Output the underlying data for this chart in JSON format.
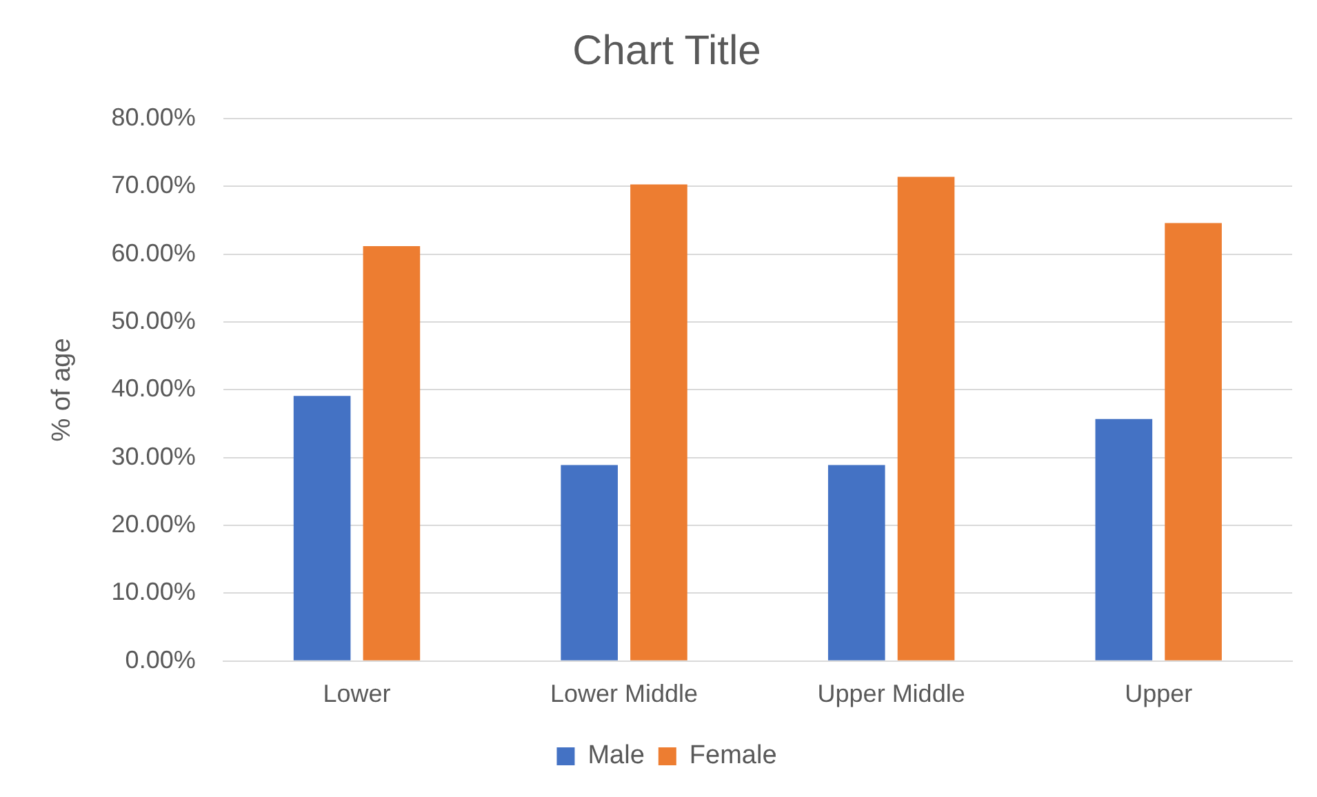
{
  "chart_data": {
    "type": "bar",
    "title": "Chart Title",
    "ylabel": "% of age",
    "categories": [
      "Lower",
      "Lower Middle",
      "Upper Middle",
      "Upper"
    ],
    "series": [
      {
        "name": "Male",
        "color": "#4472c4",
        "values": [
          39.1,
          28.9,
          28.9,
          35.7
        ]
      },
      {
        "name": "Female",
        "color": "#ed7d31",
        "values": [
          61.2,
          70.3,
          71.4,
          64.6
        ]
      }
    ],
    "ylim": [
      0,
      80
    ],
    "yticks": [
      {
        "value": 0,
        "label": "0.00%"
      },
      {
        "value": 10,
        "label": "10.00%"
      },
      {
        "value": 20,
        "label": "20.00%"
      },
      {
        "value": 30,
        "label": "30.00%"
      },
      {
        "value": 40,
        "label": "40.00%"
      },
      {
        "value": 50,
        "label": "50.00%"
      },
      {
        "value": 60,
        "label": "60.00%"
      },
      {
        "value": 70,
        "label": "70.00%"
      },
      {
        "value": 80,
        "label": "80.00%"
      }
    ],
    "grid": "y",
    "legend": "bottom"
  }
}
